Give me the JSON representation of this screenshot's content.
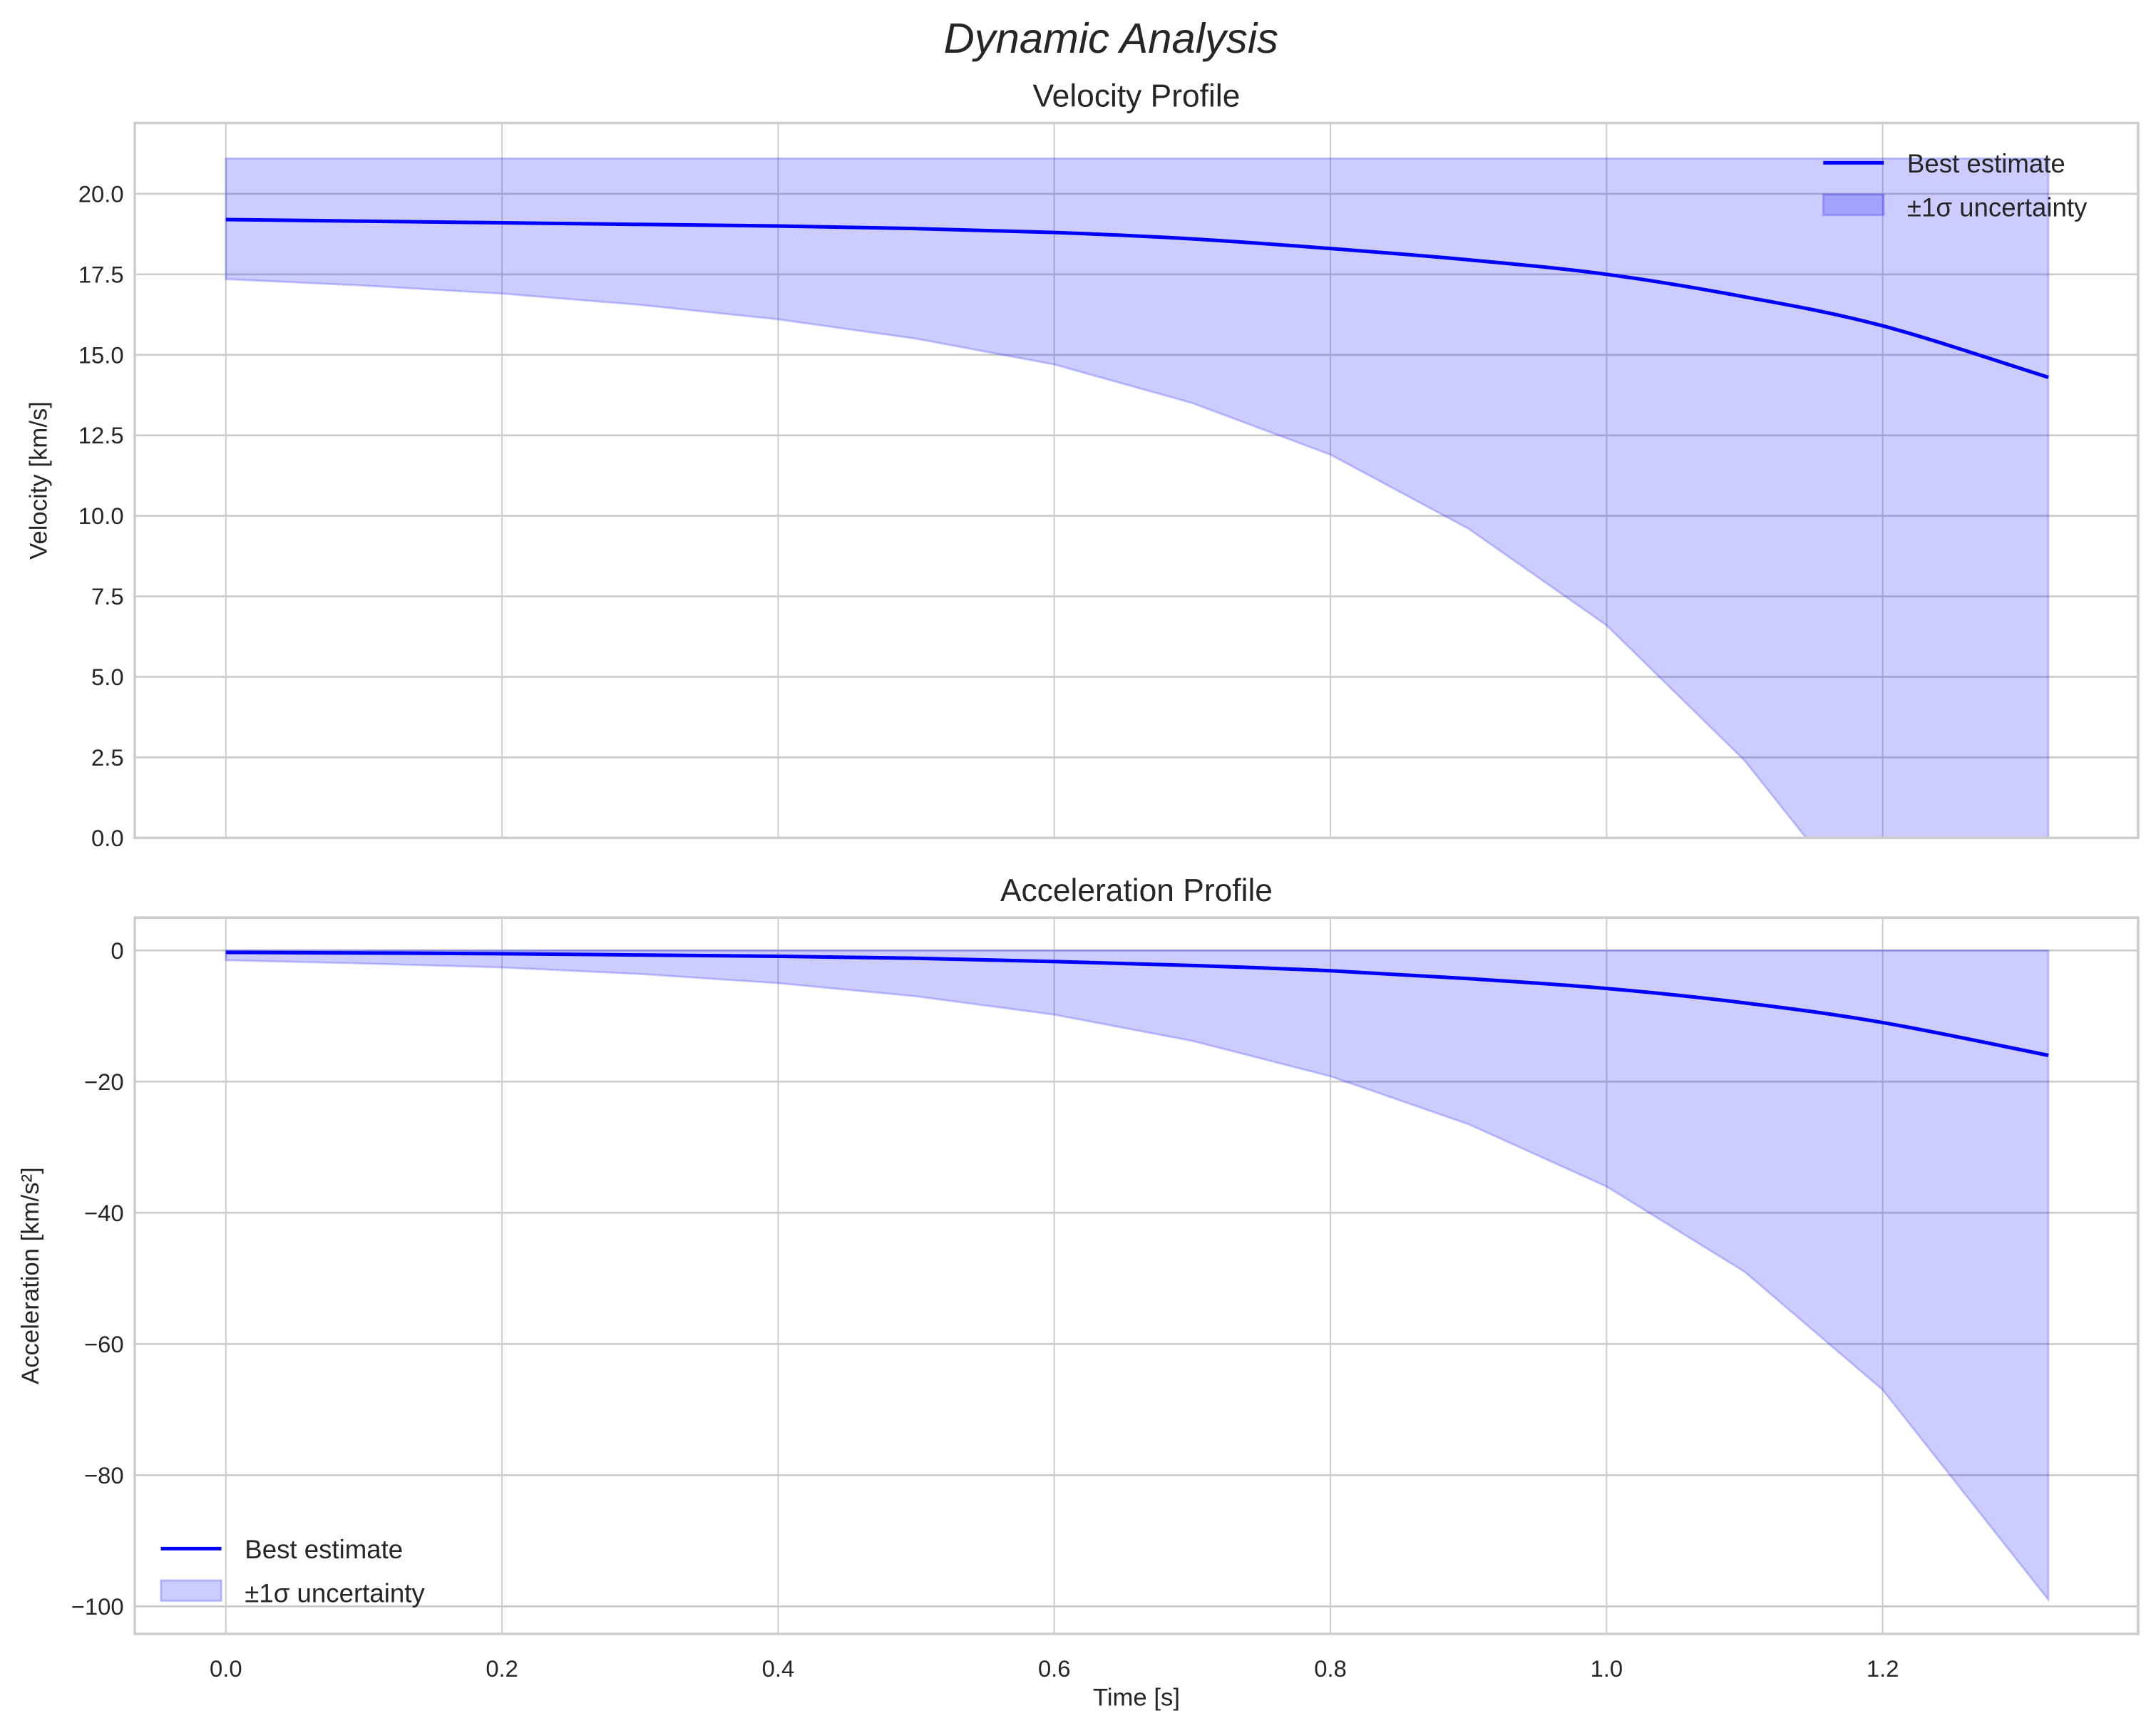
{
  "colors": {
    "line": "#0000ff",
    "fill": "#0000ff",
    "grid": "#cccccc",
    "spine": "#cccccc"
  },
  "chart_data": [
    {
      "type": "line",
      "suptitle": "Dynamic Analysis",
      "title": "Velocity Profile",
      "xlabel": "",
      "ylabel": "Velocity [km/s]",
      "xlim": [
        -0.066,
        1.385
      ],
      "ylim": [
        0,
        22.2
      ],
      "grid": true,
      "legend_placement": "top-right",
      "xticks": [
        0.0,
        0.2,
        0.4,
        0.6,
        0.8,
        1.0,
        1.2
      ],
      "xtick_labels": [],
      "yticks": [
        0,
        2.5,
        5,
        7.5,
        10,
        12.5,
        15,
        17.5,
        20
      ],
      "ytick_labels": [
        "0.0",
        "2.5",
        "5.0",
        "7.5",
        "10.0",
        "12.5",
        "15.0",
        "17.5",
        "20.0"
      ],
      "x": [
        0,
        0.1,
        0.2,
        0.3,
        0.4,
        0.5,
        0.6,
        0.7,
        0.8,
        0.9,
        1.0,
        1.1,
        1.2,
        1.32
      ],
      "series": [
        {
          "name": "Best estimate",
          "values": [
            19.2,
            19.15,
            19.1,
            19.05,
            19.0,
            18.92,
            18.8,
            18.6,
            18.3,
            17.95,
            17.5,
            16.8,
            15.9,
            14.3
          ]
        }
      ],
      "band": {
        "name": "±1σ uncertainty",
        "lower": [
          17.35,
          17.15,
          16.9,
          16.55,
          16.1,
          15.5,
          14.7,
          13.5,
          11.9,
          9.6,
          6.6,
          2.4,
          -3.0,
          -10.5
        ],
        "upper": [
          21.1,
          21.1,
          21.1,
          21.1,
          21.1,
          21.1,
          21.1,
          21.1,
          21.1,
          21.1,
          21.1,
          21.1,
          21.1,
          21.1
        ]
      }
    },
    {
      "type": "line",
      "title": "Acceleration Profile",
      "xlabel": "Time [s]",
      "ylabel": "Acceleration [km/s²]",
      "xlim": [
        -0.066,
        1.385
      ],
      "ylim": [
        -104.2,
        5.0
      ],
      "grid": true,
      "legend_placement": "lower-left",
      "xticks": [
        0.0,
        0.2,
        0.4,
        0.6,
        0.8,
        1.0,
        1.2
      ],
      "xtick_labels": [
        "0.0",
        "0.2",
        "0.4",
        "0.6",
        "0.8",
        "1.0",
        "1.2"
      ],
      "yticks": [
        0,
        -20,
        -40,
        -60,
        -80,
        -100
      ],
      "ytick_labels": [
        "0",
        "−20",
        "−40",
        "−60",
        "−80",
        "−100"
      ],
      "x": [
        0,
        0.1,
        0.2,
        0.3,
        0.4,
        0.5,
        0.6,
        0.7,
        0.8,
        0.9,
        1.0,
        1.1,
        1.2,
        1.32
      ],
      "series": [
        {
          "name": "Best estimate",
          "values": [
            -0.3,
            -0.4,
            -0.5,
            -0.7,
            -0.9,
            -1.2,
            -1.7,
            -2.3,
            -3.1,
            -4.3,
            -5.8,
            -8.0,
            -11.0,
            -16.0
          ]
        }
      ],
      "band": {
        "name": "±1σ uncertainty",
        "lower": [
          -1.5,
          -2.0,
          -2.6,
          -3.6,
          -5.0,
          -7.0,
          -9.8,
          -13.8,
          -19.2,
          -26.5,
          -36,
          -49,
          -67,
          -99
        ],
        "upper": [
          0,
          0,
          0,
          0,
          0,
          0,
          0,
          0,
          0,
          0,
          0,
          0,
          0,
          0
        ]
      }
    }
  ]
}
